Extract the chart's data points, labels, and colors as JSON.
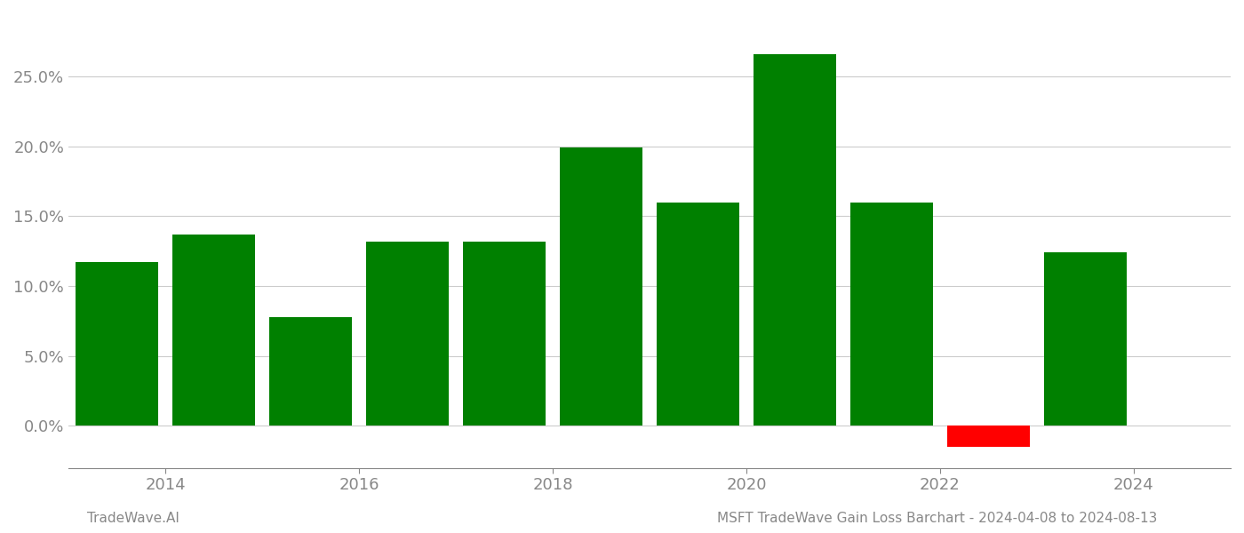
{
  "years": [
    2013.5,
    2014.5,
    2015.5,
    2016.5,
    2017.5,
    2018.5,
    2019.5,
    2020.5,
    2021.5,
    2022.5,
    2023.5
  ],
  "values": [
    0.117,
    0.137,
    0.078,
    0.132,
    0.132,
    0.199,
    0.16,
    0.266,
    0.16,
    -0.015,
    0.124
  ],
  "bar_colors": [
    "#008000",
    "#008000",
    "#008000",
    "#008000",
    "#008000",
    "#008000",
    "#008000",
    "#008000",
    "#008000",
    "#ff0000",
    "#008000"
  ],
  "ylim": [
    -0.03,
    0.295
  ],
  "yticks": [
    0.0,
    0.05,
    0.1,
    0.15,
    0.2,
    0.25
  ],
  "xticks": [
    2014,
    2016,
    2018,
    2020,
    2022,
    2024
  ],
  "xlim": [
    2013.0,
    2025.0
  ],
  "footer_left": "TradeWave.AI",
  "footer_right": "MSFT TradeWave Gain Loss Barchart - 2024-04-08 to 2024-08-13",
  "background_color": "#ffffff",
  "bar_width": 0.85,
  "grid_color": "#cccccc",
  "text_color": "#888888",
  "footer_fontsize": 11,
  "tick_fontsize": 13
}
